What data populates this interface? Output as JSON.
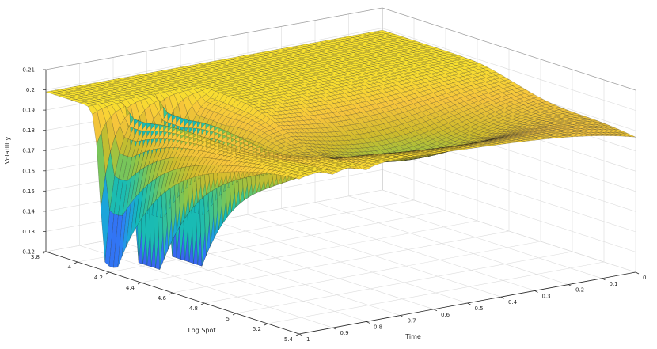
{
  "chart_data": {
    "type": "surface",
    "title": "",
    "xlabel": "Log Spot",
    "ylabel": "Time",
    "zlabel": "Volatility",
    "xlim": [
      3.8,
      5.4
    ],
    "ylim": [
      0,
      1
    ],
    "zlim": [
      0.12,
      0.21
    ],
    "x_ticks": [
      "3.8",
      "4",
      "4.2",
      "4.4",
      "4.6",
      "4.8",
      "5",
      "5.2",
      "5.4"
    ],
    "y_ticks": [
      "1",
      "0.9",
      "0.8",
      "0.7",
      "0.6",
      "0.5",
      "0.4",
      "0.3",
      "0.2",
      "0.1",
      "0"
    ],
    "z_ticks": [
      "0.12",
      "0.13",
      "0.14",
      "0.15",
      "0.16",
      "0.17",
      "0.18",
      "0.19",
      "0.2",
      "0.21"
    ],
    "grid": true,
    "colormap": "parula",
    "colormap_colors": [
      "#3e26a8",
      "#4250e8",
      "#2d7ff8",
      "#1ca3de",
      "#14bab9",
      "#3cc48f",
      "#8cc548",
      "#cfbb2c",
      "#f7c53c",
      "#f9e62b"
    ],
    "surface_description_values": {
      "base_volatility": 0.199,
      "spike_maturities": [
        1.0,
        0.9,
        0.8
      ],
      "spike_minimum_volatility": 0.123
    }
  }
}
